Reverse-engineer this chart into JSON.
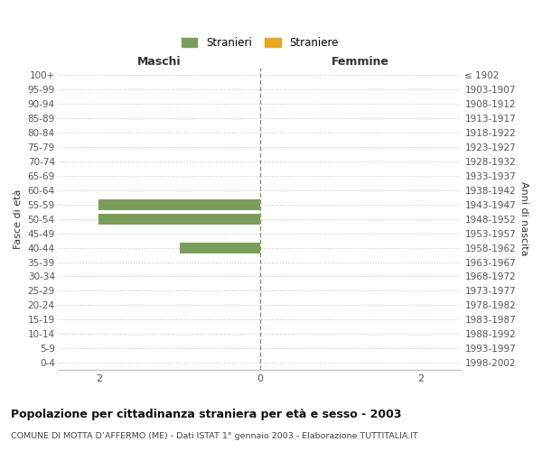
{
  "age_groups": [
    "100+",
    "95-99",
    "90-94",
    "85-89",
    "80-84",
    "75-79",
    "70-74",
    "65-69",
    "60-64",
    "55-59",
    "50-54",
    "45-49",
    "40-44",
    "35-39",
    "30-34",
    "25-29",
    "20-24",
    "15-19",
    "10-14",
    "5-9",
    "0-4"
  ],
  "birth_years": [
    "≤ 1902",
    "1903-1907",
    "1908-1912",
    "1913-1917",
    "1918-1922",
    "1923-1927",
    "1928-1932",
    "1933-1937",
    "1938-1942",
    "1943-1947",
    "1948-1952",
    "1953-1957",
    "1958-1962",
    "1963-1967",
    "1968-1972",
    "1973-1977",
    "1978-1982",
    "1983-1987",
    "1988-1992",
    "1993-1997",
    "1998-2002"
  ],
  "maschi_stranieri": [
    0,
    0,
    0,
    0,
    0,
    0,
    0,
    0,
    0,
    2,
    2,
    0,
    1,
    0,
    0,
    0,
    0,
    0,
    0,
    0,
    0
  ],
  "maschi_straniere": [
    0,
    0,
    0,
    0,
    0,
    0,
    0,
    0,
    0,
    0,
    0,
    0,
    0,
    0,
    0,
    0,
    0,
    0,
    0,
    0,
    0
  ],
  "femmine_stranieri": [
    0,
    0,
    0,
    0,
    0,
    0,
    0,
    0,
    0,
    0,
    0,
    0,
    0,
    0,
    0,
    0,
    0,
    0,
    0,
    0,
    0
  ],
  "femmine_straniere": [
    0,
    0,
    0,
    0,
    0,
    0,
    0,
    0,
    0,
    0,
    0,
    0,
    0,
    0,
    0,
    0,
    0,
    0,
    0,
    0,
    0
  ],
  "color_stranieri": "#7A9E5A",
  "color_straniere": "#E8A820",
  "xlim": 2.5,
  "title": "Popolazione per cittadinanza straniera per età e sesso - 2003",
  "subtitle": "COMUNE DI MOTTA D’AFFERMO (ME) - Dati ISTAT 1° gennaio 2003 - Elaborazione TUTTITALIA.IT",
  "ylabel_left": "Fasce di età",
  "ylabel_right": "Anni di nascita",
  "label_maschi": "Maschi",
  "label_femmine": "Femmine",
  "legend_stranieri": "Stranieri",
  "legend_straniere": "Straniere",
  "bar_height": 0.75,
  "figwidth": 6.0,
  "figheight": 5.0,
  "dpi": 100
}
